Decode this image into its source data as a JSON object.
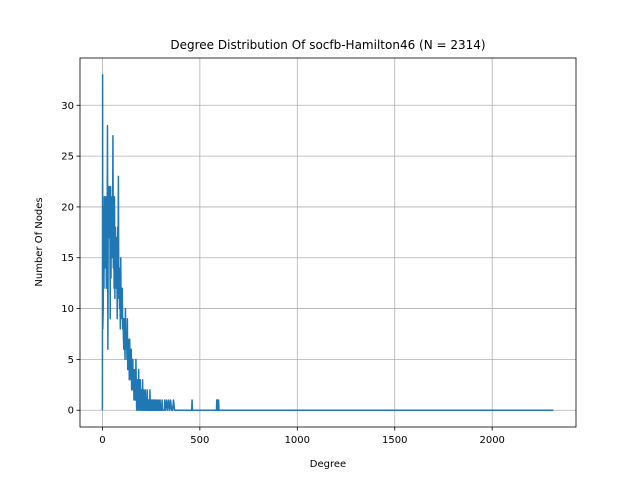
{
  "chart_data": {
    "type": "line",
    "title": "Degree Distribution Of socfb-Hamilton46 (N = 2314)",
    "xlabel": "Degree",
    "ylabel": "Number Of Nodes",
    "xlim": [
      -115,
      2430
    ],
    "ylim": [
      -1.65,
      34.65
    ],
    "xticks": [
      0,
      500,
      1000,
      1500,
      2000
    ],
    "yticks": [
      0,
      5,
      10,
      15,
      20,
      25,
      30
    ],
    "grid": true,
    "series": [
      {
        "name": "",
        "color": "#1f77b4",
        "x": [
          0,
          1,
          2,
          4,
          6,
          8,
          10,
          12,
          14,
          16,
          18,
          20,
          22,
          24,
          26,
          28,
          30,
          32,
          34,
          36,
          38,
          40,
          42,
          44,
          46,
          48,
          50,
          52,
          54,
          56,
          58,
          60,
          62,
          64,
          66,
          68,
          70,
          72,
          74,
          76,
          78,
          80,
          82,
          84,
          86,
          88,
          90,
          92,
          94,
          96,
          98,
          100,
          102,
          104,
          106,
          108,
          110,
          112,
          114,
          116,
          118,
          120,
          122,
          124,
          126,
          128,
          130,
          132,
          134,
          136,
          138,
          140,
          142,
          144,
          146,
          148,
          150,
          152,
          154,
          156,
          158,
          160,
          162,
          164,
          166,
          168,
          170,
          172,
          174,
          176,
          178,
          180,
          182,
          184,
          186,
          188,
          190,
          192,
          194,
          196,
          198,
          200,
          202,
          204,
          206,
          208,
          210,
          212,
          214,
          216,
          218,
          220,
          222,
          224,
          226,
          228,
          230,
          232,
          234,
          236,
          238,
          240,
          242,
          244,
          246,
          248,
          250,
          252,
          254,
          256,
          258,
          260,
          262,
          264,
          266,
          268,
          270,
          272,
          274,
          276,
          278,
          280,
          282,
          284,
          286,
          288,
          290,
          292,
          294,
          296,
          298,
          300,
          302,
          304,
          306,
          308,
          310,
          312,
          314,
          316,
          318,
          320,
          325,
          330,
          335,
          340,
          345,
          350,
          355,
          360,
          365,
          370,
          380,
          400,
          420,
          440,
          458,
          460,
          462,
          480,
          500,
          550,
          585,
          587,
          590,
          592,
          594,
          596,
          598,
          600,
          602,
          604,
          650,
          700,
          1000,
          1500,
          2000,
          2314
        ],
        "y": [
          0,
          33,
          8,
          10,
          20,
          12,
          21,
          15,
          14,
          19,
          21,
          12,
          14,
          16,
          28,
          6,
          21,
          22,
          17,
          20,
          22,
          9,
          22,
          13,
          20,
          15,
          21,
          18,
          27,
          14,
          20,
          12,
          21,
          11,
          18,
          14,
          16,
          12,
          17,
          9,
          18,
          13,
          23,
          11,
          14,
          10,
          12,
          8,
          15,
          10,
          11,
          9,
          12,
          8,
          9,
          7,
          6,
          9,
          8,
          5,
          10,
          7,
          6,
          8,
          5,
          9,
          4,
          7,
          5,
          6,
          3,
          7,
          4,
          5,
          3,
          6,
          2,
          4,
          3,
          5,
          2,
          3,
          1,
          4,
          2,
          3,
          1,
          5,
          2,
          0,
          3,
          1,
          2,
          0,
          4,
          1,
          2,
          0,
          3,
          1,
          0,
          2,
          1,
          0,
          3,
          1,
          0,
          2,
          0,
          1,
          0,
          2,
          1,
          0,
          1,
          0,
          2,
          0,
          1,
          0,
          1,
          0,
          0,
          2,
          0,
          1,
          0,
          0,
          1,
          0,
          0,
          1,
          0,
          0,
          1,
          0,
          0,
          1,
          0,
          0,
          0,
          1,
          0,
          0,
          0,
          1,
          0,
          0,
          0,
          1,
          0,
          0,
          0,
          0,
          1,
          0,
          0,
          0,
          0,
          0,
          0,
          1,
          0,
          1,
          0,
          1,
          0,
          1,
          0,
          0,
          1,
          0,
          0,
          0,
          0,
          0,
          0,
          1,
          0,
          0,
          0,
          0,
          0,
          1,
          0,
          1,
          0,
          1,
          0,
          0,
          0,
          0,
          0,
          0,
          0,
          0,
          0,
          0
        ]
      }
    ]
  }
}
